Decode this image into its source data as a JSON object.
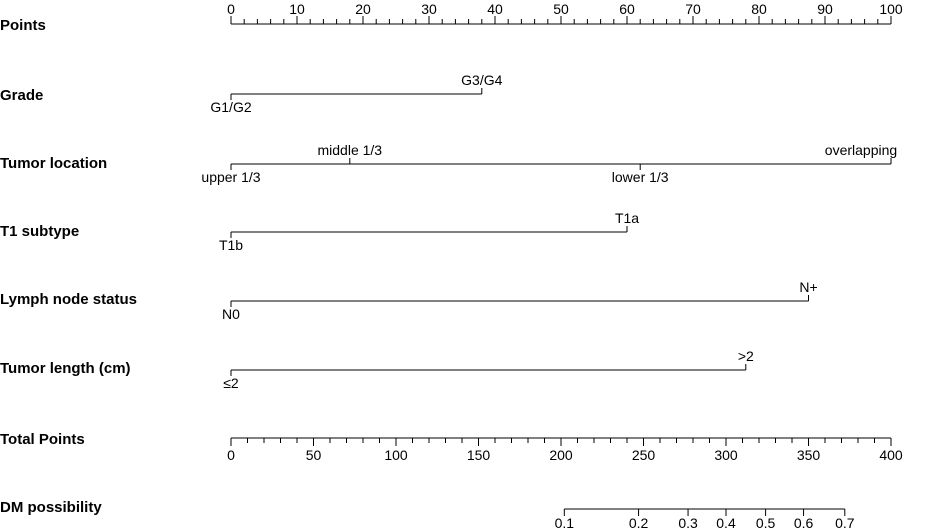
{
  "chart_data": {
    "type": "nomogram",
    "points_scale": {
      "label": "Points",
      "min": 0,
      "max": 100,
      "labeled_ticks": [
        0,
        10,
        20,
        30,
        40,
        50,
        60,
        70,
        80,
        90,
        100
      ],
      "minor_step": 2
    },
    "variables": [
      {
        "name": "Grade",
        "levels": [
          {
            "label": "G1/G2",
            "points": 0,
            "label_side": "below"
          },
          {
            "label": "G3/G4",
            "points": 38,
            "label_side": "above"
          }
        ]
      },
      {
        "name": "Tumor location",
        "levels": [
          {
            "label": "upper 1/3",
            "points": 0,
            "label_side": "below"
          },
          {
            "label": "middle 1/3",
            "points": 18,
            "label_side": "above"
          },
          {
            "label": "lower 1/3",
            "points": 62,
            "label_side": "below"
          },
          {
            "label": "overlapping",
            "points": 100,
            "label_side": "above"
          }
        ]
      },
      {
        "name": "T1 subtype",
        "levels": [
          {
            "label": "T1b",
            "points": 0,
            "label_side": "below"
          },
          {
            "label": "T1a",
            "points": 60,
            "label_side": "above"
          }
        ]
      },
      {
        "name": "Lymph node status",
        "levels": [
          {
            "label": "N0",
            "points": 0,
            "label_side": "below"
          },
          {
            "label": "N+",
            "points": 87.5,
            "label_side": "above"
          }
        ]
      },
      {
        "name": "Tumor length (cm)",
        "levels": [
          {
            "label": "≤2",
            "points": 0,
            "label_side": "below"
          },
          {
            "label": ">2",
            "points": 78,
            "label_side": "above"
          }
        ]
      }
    ],
    "total_points_scale": {
      "label": "Total Points",
      "min": 0,
      "max": 400,
      "labeled_ticks": [
        0,
        50,
        100,
        150,
        200,
        250,
        300,
        350,
        400
      ],
      "minor_step": 10
    },
    "probability_scale": {
      "label": "DM possibility",
      "ticks": [
        {
          "label": "0.1",
          "total_points": 202
        },
        {
          "label": "0.2",
          "total_points": 247
        },
        {
          "label": "0.3",
          "total_points": 277
        },
        {
          "label": "0.4",
          "total_points": 300
        },
        {
          "label": "0.5",
          "total_points": 324
        },
        {
          "label": "0.6",
          "total_points": 347
        },
        {
          "label": "0.7",
          "total_points": 372
        }
      ]
    }
  }
}
